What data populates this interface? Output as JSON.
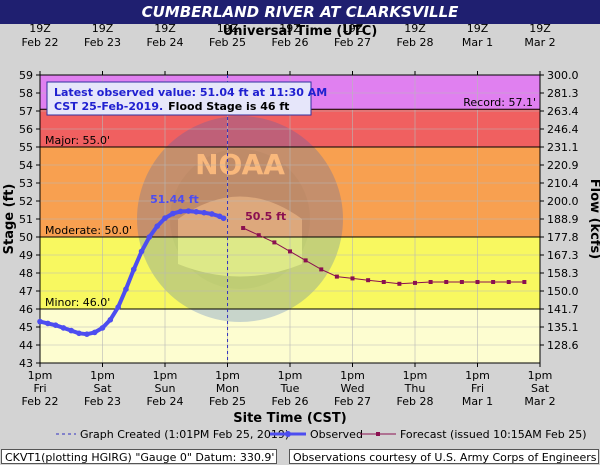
{
  "title": "CUMBERLAND RIVER AT CLARKSVILLE",
  "footer": {
    "left": "CKVT1(plotting HGIRG) \"Gauge 0\" Datum: 330.9'",
    "right": "Observations courtesy of U.S. Army Corps of Engineers"
  },
  "colors": {
    "record": "#e080f0",
    "major": "#f06060",
    "moderate": "#f8a050",
    "minor": "#f8f860",
    "normal": "#fdfdd0",
    "observed": "#4d4df0",
    "forecast": "#8b1050",
    "title_bg": "#1f1f70"
  },
  "chart_data": {
    "type": "line",
    "top_axis_title": "Universal Time (UTC)",
    "top_ticks": [
      {
        "time": "19Z",
        "date": "Feb 22"
      },
      {
        "time": "19Z",
        "date": "Feb 23"
      },
      {
        "time": "19Z",
        "date": "Feb 24"
      },
      {
        "time": "19Z",
        "date": "Feb 25"
      },
      {
        "time": "19Z",
        "date": "Feb 26"
      },
      {
        "time": "19Z",
        "date": "Feb 27"
      },
      {
        "time": "19Z",
        "date": "Feb 28"
      },
      {
        "time": "19Z",
        "date": "Mar 1"
      },
      {
        "time": "19Z",
        "date": "Mar 2"
      }
    ],
    "xlabel": "Site Time (CST)",
    "x_ticks": [
      {
        "time": "1pm",
        "day": "Fri",
        "date": "Feb 22"
      },
      {
        "time": "1pm",
        "day": "Sat",
        "date": "Feb 23"
      },
      {
        "time": "1pm",
        "day": "Sun",
        "date": "Feb 24"
      },
      {
        "time": "1pm",
        "day": "Mon",
        "date": "Feb 25"
      },
      {
        "time": "1pm",
        "day": "Tue",
        "date": "Feb 26"
      },
      {
        "time": "1pm",
        "day": "Wed",
        "date": "Feb 27"
      },
      {
        "time": "1pm",
        "day": "Thu",
        "date": "Feb 28"
      },
      {
        "time": "1pm",
        "day": "Fri",
        "date": "Mar 1"
      },
      {
        "time": "1pm",
        "day": "Sat",
        "date": "Mar 2"
      }
    ],
    "xlim": [
      "2019-02-22 13:00",
      "2019-03-02 13:00"
    ],
    "ylabel": "Stage (ft)",
    "ylim": [
      43,
      59
    ],
    "y_ticks": [
      43,
      44,
      45,
      46,
      47,
      48,
      49,
      50,
      51,
      52,
      53,
      54,
      55,
      56,
      57,
      58,
      59
    ],
    "y2label": "Flow (kcfs)",
    "y2_ticks": [
      {
        "stage": 44,
        "label": "128.6"
      },
      {
        "stage": 45,
        "label": "135.1"
      },
      {
        "stage": 46,
        "label": "141.7"
      },
      {
        "stage": 47,
        "label": "150.0"
      },
      {
        "stage": 48,
        "label": "158.3"
      },
      {
        "stage": 49,
        "label": "167.3"
      },
      {
        "stage": 50,
        "label": "177.8"
      },
      {
        "stage": 51,
        "label": "188.9"
      },
      {
        "stage": 52,
        "label": "200.0"
      },
      {
        "stage": 53,
        "label": "210.4"
      },
      {
        "stage": 54,
        "label": "220.9"
      },
      {
        "stage": 55,
        "label": "231.1"
      },
      {
        "stage": 56,
        "label": "246.4"
      },
      {
        "stage": 57,
        "label": "263.4"
      },
      {
        "stage": 58,
        "label": "281.3"
      },
      {
        "stage": 59,
        "label": "300.0"
      }
    ],
    "bands": [
      {
        "name": "record",
        "from": 57.1,
        "to": 59
      },
      {
        "name": "major",
        "from": 55,
        "to": 57.1
      },
      {
        "name": "moderate",
        "from": 50,
        "to": 55
      },
      {
        "name": "minor",
        "from": 46,
        "to": 50
      },
      {
        "name": "normal",
        "from": 43,
        "to": 46
      }
    ],
    "stage_labels": [
      {
        "text": "Record: 57.1'",
        "value": 57.1,
        "side": "right"
      },
      {
        "text": "Major: 55.0'",
        "value": 55.0,
        "side": "left"
      },
      {
        "text": "Moderate: 50.0'",
        "value": 50.0,
        "side": "left"
      },
      {
        "text": "Minor: 46.0'",
        "value": 46.0,
        "side": "left"
      }
    ],
    "graph_created": "2019-02-25 13:01",
    "info_box": {
      "line1": "Latest observed value: 51.04 ft at 11:30 AM",
      "line2a": "CST 25-Feb-2019.",
      "line2b": "Flood Stage is 46 ft"
    },
    "annotations": [
      {
        "text": "51.44 ft",
        "series": "Observed"
      },
      {
        "text": "50.5 ft",
        "series": "Forecast"
      }
    ],
    "series": [
      {
        "name": "Observed",
        "x": [
          "2019-02-22 13:00",
          "2019-02-22 16:00",
          "2019-02-22 19:00",
          "2019-02-22 22:00",
          "2019-02-23 01:00",
          "2019-02-23 04:00",
          "2019-02-23 07:00",
          "2019-02-23 10:00",
          "2019-02-23 13:00",
          "2019-02-23 16:00",
          "2019-02-23 19:00",
          "2019-02-23 22:00",
          "2019-02-24 01:00",
          "2019-02-24 04:00",
          "2019-02-24 07:00",
          "2019-02-24 10:00",
          "2019-02-24 13:00",
          "2019-02-24 16:00",
          "2019-02-24 19:00",
          "2019-02-24 22:00",
          "2019-02-25 01:00",
          "2019-02-25 04:00",
          "2019-02-25 07:00",
          "2019-02-25 10:00",
          "2019-02-25 11:30"
        ],
        "y": [
          45.3,
          45.2,
          45.1,
          44.95,
          44.8,
          44.65,
          44.6,
          44.7,
          44.95,
          45.4,
          46.1,
          47.1,
          48.2,
          49.2,
          50.0,
          50.6,
          51.05,
          51.3,
          51.42,
          51.44,
          51.4,
          51.35,
          51.28,
          51.15,
          51.04
        ]
      },
      {
        "name": "Forecast",
        "issued": "issued 10:15AM Feb 25",
        "x": [
          "2019-02-25 19:00",
          "2019-02-26 01:00",
          "2019-02-26 07:00",
          "2019-02-26 13:00",
          "2019-02-26 19:00",
          "2019-02-27 01:00",
          "2019-02-27 07:00",
          "2019-02-27 13:00",
          "2019-02-27 19:00",
          "2019-02-28 01:00",
          "2019-02-28 07:00",
          "2019-02-28 13:00",
          "2019-02-28 19:00",
          "2019-03-01 01:00",
          "2019-03-01 07:00",
          "2019-03-01 13:00",
          "2019-03-01 19:00",
          "2019-03-02 01:00",
          "2019-03-02 07:00"
        ],
        "y": [
          50.5,
          50.1,
          49.7,
          49.2,
          48.7,
          48.2,
          47.8,
          47.7,
          47.6,
          47.5,
          47.4,
          47.45,
          47.5,
          47.5,
          47.5,
          47.5,
          47.5,
          47.5,
          47.5
        ]
      }
    ],
    "legend": {
      "position": "bottom",
      "items": [
        {
          "label": "Graph Created (1:01PM Feb 25, 2019)",
          "style": "dashed"
        },
        {
          "label": "Observed",
          "style": "observed"
        },
        {
          "label": "Forecast (issued 10:15AM Feb 25)",
          "style": "forecast"
        }
      ]
    }
  }
}
